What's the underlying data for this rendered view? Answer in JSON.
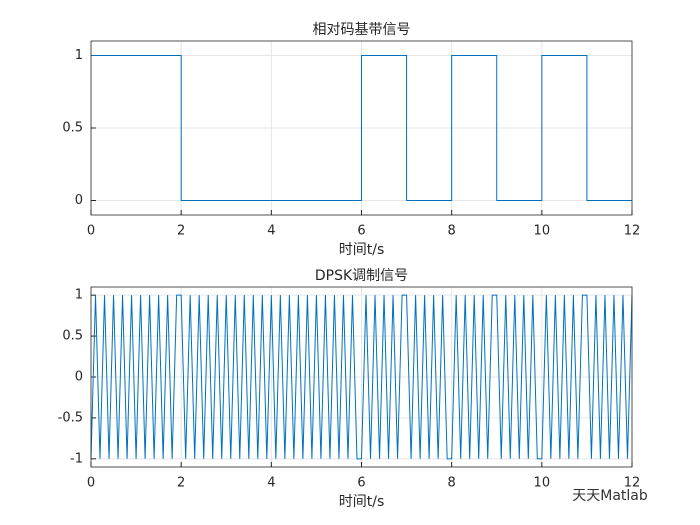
{
  "chart_data": [
    {
      "type": "line",
      "title": "相对码基带信号",
      "xlabel": "时间t/s",
      "x": [
        0,
        2,
        2,
        6,
        6,
        7,
        7,
        8,
        8,
        9,
        9,
        10,
        10,
        11,
        11,
        12
      ],
      "values": [
        1,
        1,
        0,
        0,
        1,
        1,
        0,
        0,
        1,
        1,
        0,
        0,
        1,
        1,
        0,
        0
      ],
      "color": "#0072bd",
      "xlim": [
        0,
        12
      ],
      "xticks": [
        0,
        2,
        4,
        6,
        8,
        10,
        12
      ],
      "ylim": [
        -0.1,
        1.1
      ],
      "yticks": [
        0,
        0.5,
        1
      ],
      "grid": true
    },
    {
      "type": "line",
      "title": "DPSK调制信号",
      "xlabel": "时间t/s",
      "x": [
        0,
        0.1,
        0.2,
        0.3,
        0.4,
        0.5,
        0.6,
        0.7,
        0.8,
        0.9,
        1,
        1.1,
        1.2,
        1.3,
        1.4,
        1.5,
        1.6,
        1.7,
        1.8,
        1.9,
        2,
        2.1,
        2.2,
        2.3,
        2.4,
        2.5,
        2.6,
        2.7,
        2.8,
        2.9,
        3,
        3.1,
        3.2,
        3.3,
        3.4,
        3.5,
        3.6,
        3.7,
        3.8,
        3.9,
        4,
        4.1,
        4.2,
        4.3,
        4.4,
        4.5,
        4.6,
        4.7,
        4.8,
        4.9,
        5,
        5.1,
        5.2,
        5.3,
        5.4,
        5.5,
        5.6,
        5.7,
        5.8,
        5.9,
        6,
        6.1,
        6.2,
        6.3,
        6.4,
        6.5,
        6.6,
        6.7,
        6.8,
        6.9,
        7,
        7.1,
        7.2,
        7.3,
        7.4,
        7.5,
        7.6,
        7.7,
        7.8,
        7.9,
        8,
        8.1,
        8.2,
        8.3,
        8.4,
        8.5,
        8.6,
        8.7,
        8.8,
        8.9,
        9,
        9.1,
        9.2,
        9.3,
        9.4,
        9.5,
        9.6,
        9.7,
        9.8,
        9.9,
        10,
        10.1,
        10.2,
        10.3,
        10.4,
        10.5,
        10.6,
        10.7,
        10.8,
        10.9,
        11,
        11.1,
        11.2,
        11.3,
        11.4,
        11.5,
        11.6,
        11.7,
        11.8,
        11.9,
        12
      ],
      "values": [
        -1,
        1,
        -1,
        1,
        -1,
        1,
        -1,
        1,
        -1,
        1,
        -1,
        1,
        -1,
        1,
        -1,
        1,
        -1,
        1,
        -1,
        1,
        1,
        -1,
        1,
        -1,
        1,
        -1,
        1,
        -1,
        1,
        -1,
        1,
        -1,
        1,
        -1,
        1,
        -1,
        1,
        -1,
        1,
        -1,
        1,
        -1,
        1,
        -1,
        1,
        -1,
        1,
        -1,
        1,
        -1,
        1,
        -1,
        1,
        -1,
        1,
        -1,
        1,
        -1,
        1,
        -1,
        -1,
        1,
        -1,
        1,
        -1,
        1,
        -1,
        1,
        -1,
        1,
        1,
        -1,
        1,
        -1,
        1,
        -1,
        1,
        -1,
        1,
        -1,
        -1,
        1,
        -1,
        1,
        -1,
        1,
        -1,
        1,
        -1,
        1,
        1,
        -1,
        1,
        -1,
        1,
        -1,
        1,
        -1,
        1,
        -1,
        -1,
        1,
        -1,
        1,
        -1,
        1,
        -1,
        1,
        -1,
        1,
        1,
        -1,
        1,
        -1,
        1,
        -1,
        1,
        -1,
        1,
        -1,
        1
      ],
      "color": "#0072bd",
      "xlim": [
        0,
        12
      ],
      "xticks": [
        0,
        2,
        4,
        6,
        8,
        10,
        12
      ],
      "ylim": [
        -1.1,
        1.1
      ],
      "yticks": [
        -1,
        -0.5,
        0,
        0.5,
        1
      ],
      "grid": true
    }
  ],
  "watermark": "天天Matlab"
}
